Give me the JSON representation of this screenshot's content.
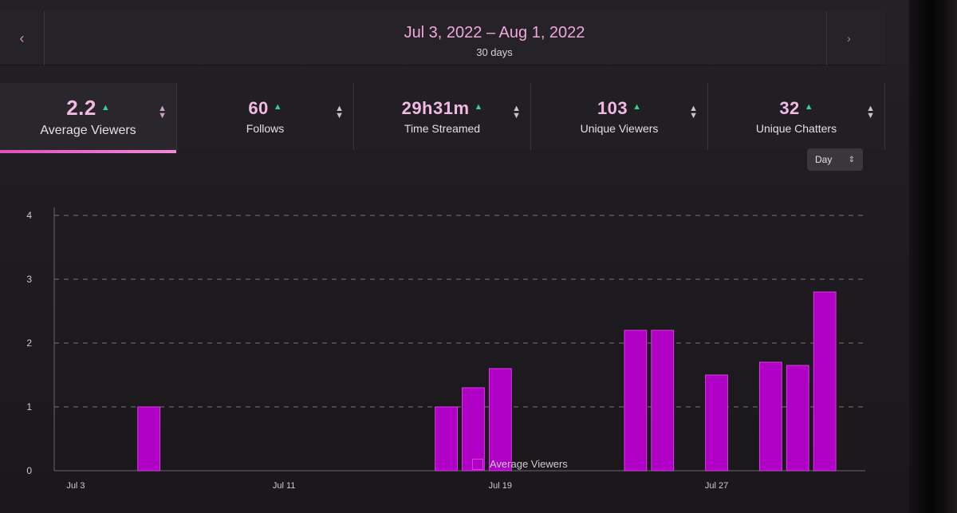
{
  "header": {
    "date_range": "Jul 3, 2022 – Aug 1, 2022",
    "duration": "30 days",
    "prev_icon": "‹",
    "next_icon": "›"
  },
  "metrics": [
    {
      "value": "2.2",
      "label": "Average Viewers",
      "trend": "up",
      "active": true
    },
    {
      "value": "60",
      "label": "Follows",
      "trend": "up",
      "active": false
    },
    {
      "value": "29h31m",
      "label": "Time Streamed",
      "trend": "up",
      "active": false
    },
    {
      "value": "103",
      "label": "Unique Viewers",
      "trend": "up",
      "active": false
    },
    {
      "value": "32",
      "label": "Unique Chatters",
      "trend": "up",
      "active": false
    }
  ],
  "granularity": {
    "selected": "Day"
  },
  "colors": {
    "accent": "#b000c6",
    "bar_edge": "#d63ce3",
    "trend_up": "#35d08f"
  },
  "chart_data": {
    "type": "bar",
    "x": [
      "Jul 3",
      "Jul 4",
      "Jul 5",
      "Jul 6",
      "Jul 7",
      "Jul 8",
      "Jul 9",
      "Jul 10",
      "Jul 11",
      "Jul 12",
      "Jul 13",
      "Jul 14",
      "Jul 15",
      "Jul 16",
      "Jul 17",
      "Jul 18",
      "Jul 19",
      "Jul 20",
      "Jul 21",
      "Jul 22",
      "Jul 23",
      "Jul 24",
      "Jul 25",
      "Jul 26",
      "Jul 27",
      "Jul 28",
      "Jul 29",
      "Jul 30",
      "Jul 31",
      "Aug 1"
    ],
    "values": [
      0,
      0,
      0,
      1.0,
      0,
      0,
      0,
      0,
      0,
      0,
      0,
      0,
      0,
      0,
      1.0,
      1.3,
      1.6,
      0,
      0,
      0,
      0,
      2.2,
      2.2,
      0,
      1.5,
      0,
      1.7,
      1.65,
      2.8,
      0
    ],
    "xticks": [
      "Jul 3",
      "Jul 11",
      "Jul 19",
      "Jul 27"
    ],
    "yticks": [
      0,
      1,
      2,
      3,
      4
    ],
    "ylim": [
      0,
      4
    ],
    "series": [
      {
        "name": "Average Viewers"
      }
    ],
    "grid": true,
    "legend": "bottom-center"
  }
}
